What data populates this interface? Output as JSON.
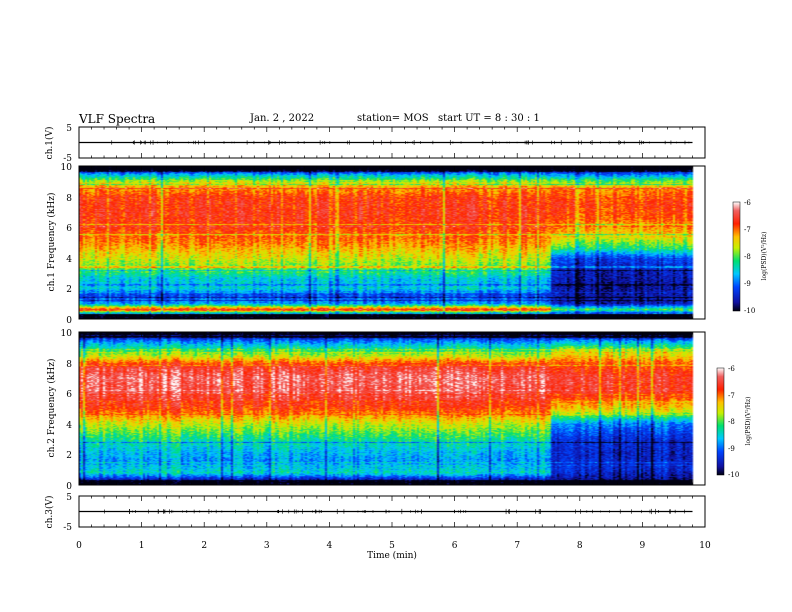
{
  "header": {
    "title": "VLF Spectra",
    "date": "Jan. 2 , 2022",
    "station": "station= MOS",
    "start": "start UT =  8 : 30 : 1"
  },
  "colorbar": {
    "ticks": [
      "-6",
      "-7",
      "-8",
      "-9",
      "-10"
    ],
    "label": "log(PSD)(V²/Hz)"
  },
  "chart_data": [
    {
      "type": "line",
      "id": "ch1-waveform",
      "ylabel": "ch.1(V)",
      "ylim": [
        -5,
        5
      ],
      "yticks": [
        "5",
        "-5"
      ],
      "xlim": [
        0,
        10
      ],
      "series": [
        {
          "x": [
            0,
            1,
            2,
            3,
            4,
            5,
            6,
            7,
            8,
            9,
            9.8
          ],
          "values": [
            0,
            0,
            0,
            0,
            0,
            0,
            0,
            0,
            0,
            0,
            0
          ]
        }
      ]
    },
    {
      "type": "heatmap",
      "id": "ch1-spectrogram",
      "ylabel": "ch.1 Frequency (kHz)",
      "ylim": [
        0,
        10
      ],
      "yticks": [
        "0",
        "2",
        "4",
        "6",
        "8",
        "10"
      ],
      "xlim": [
        0,
        10
      ],
      "data_end_min": 9.8,
      "transition_min": 7.55,
      "colorscale": {
        "min": -10,
        "max": -6,
        "unit": "log(PSD)(V²/Hz)"
      },
      "profile_before": [
        {
          "f": 0.3,
          "v": -9.6
        },
        {
          "f": 0.6,
          "v": -6.6
        },
        {
          "f": 1.0,
          "v": -8.8
        },
        {
          "f": 1.6,
          "v": -9.2
        },
        {
          "f": 2.0,
          "v": -8.5
        },
        {
          "f": 2.6,
          "v": -8.6
        },
        {
          "f": 3.2,
          "v": -8.0
        },
        {
          "f": 4.0,
          "v": -7.6
        },
        {
          "f": 5.0,
          "v": -7.1
        },
        {
          "f": 6.0,
          "v": -6.8
        },
        {
          "f": 7.0,
          "v": -6.7
        },
        {
          "f": 8.0,
          "v": -6.8
        },
        {
          "f": 8.8,
          "v": -7.4
        },
        {
          "f": 9.4,
          "v": -8.6
        },
        {
          "f": 9.8,
          "v": -9.8
        }
      ],
      "profile_after": [
        {
          "f": 0.3,
          "v": -9.8
        },
        {
          "f": 0.6,
          "v": -8.0
        },
        {
          "f": 1.0,
          "v": -9.6
        },
        {
          "f": 2.0,
          "v": -9.7
        },
        {
          "f": 3.0,
          "v": -9.6
        },
        {
          "f": 4.0,
          "v": -9.2
        },
        {
          "f": 4.6,
          "v": -8.2
        },
        {
          "f": 5.5,
          "v": -7.4
        },
        {
          "f": 6.5,
          "v": -7.0
        },
        {
          "f": 7.5,
          "v": -6.8
        },
        {
          "f": 8.5,
          "v": -7.1
        },
        {
          "f": 9.2,
          "v": -8.4
        },
        {
          "f": 9.8,
          "v": -9.8
        }
      ]
    },
    {
      "type": "heatmap",
      "id": "ch2-spectrogram",
      "ylabel": "ch.2 Frequency (kHz)",
      "ylim": [
        0,
        10
      ],
      "yticks": [
        "0",
        "2",
        "4",
        "6",
        "8",
        "10"
      ],
      "xlim": [
        0,
        10
      ],
      "data_end_min": 9.8,
      "transition_min": 7.55,
      "colorscale": {
        "min": -10,
        "max": -6,
        "unit": "log(PSD)(V²/Hz)"
      },
      "profile_before": [
        {
          "f": 0.3,
          "v": -9.6
        },
        {
          "f": 0.8,
          "v": -8.4
        },
        {
          "f": 1.5,
          "v": -8.8
        },
        {
          "f": 2.2,
          "v": -8.6
        },
        {
          "f": 3.0,
          "v": -8.2
        },
        {
          "f": 4.0,
          "v": -7.6
        },
        {
          "f": 5.0,
          "v": -6.8
        },
        {
          "f": 6.0,
          "v": -6.4
        },
        {
          "f": 7.0,
          "v": -6.3
        },
        {
          "f": 7.8,
          "v": -6.6
        },
        {
          "f": 8.4,
          "v": -7.6
        },
        {
          "f": 9.2,
          "v": -8.6
        },
        {
          "f": 9.8,
          "v": -9.6
        }
      ],
      "profile_after": [
        {
          "f": 0.3,
          "v": -9.8
        },
        {
          "f": 1.0,
          "v": -9.4
        },
        {
          "f": 2.0,
          "v": -9.5
        },
        {
          "f": 3.0,
          "v": -9.4
        },
        {
          "f": 4.0,
          "v": -8.9
        },
        {
          "f": 4.8,
          "v": -7.6
        },
        {
          "f": 6.0,
          "v": -6.7
        },
        {
          "f": 7.0,
          "v": -6.6
        },
        {
          "f": 8.0,
          "v": -7.0
        },
        {
          "f": 8.8,
          "v": -7.8
        },
        {
          "f": 9.4,
          "v": -8.8
        },
        {
          "f": 9.8,
          "v": -9.8
        }
      ]
    },
    {
      "type": "line",
      "id": "ch3-waveform",
      "ylabel": "ch.3(V)",
      "ylim": [
        -5,
        5
      ],
      "yticks": [
        "5",
        "-5"
      ],
      "xlim": [
        0,
        10
      ],
      "xlabel": "Time (min)",
      "xticks": [
        "0",
        "1",
        "2",
        "3",
        "4",
        "5",
        "6",
        "7",
        "8",
        "9",
        "10"
      ],
      "series": [
        {
          "x": [
            0,
            1,
            2,
            3,
            4,
            5,
            6,
            7,
            8,
            9,
            9.8
          ],
          "values": [
            0,
            0,
            0,
            0,
            0,
            0,
            0,
            0,
            0,
            0,
            0
          ]
        }
      ]
    }
  ]
}
